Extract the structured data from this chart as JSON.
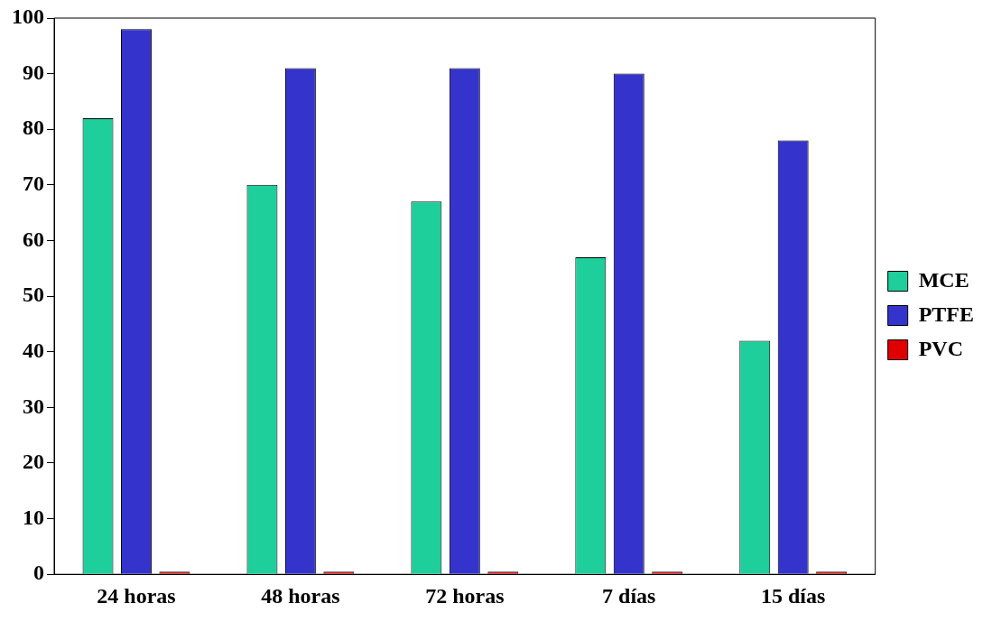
{
  "chart_data": {
    "type": "bar",
    "categories": [
      "24 horas",
      "48 horas",
      "72 horas",
      "7 días",
      "15 días"
    ],
    "series": [
      {
        "name": "MCE",
        "color": "#1ecf9c",
        "values": [
          82,
          70,
          67,
          57,
          42
        ]
      },
      {
        "name": "PTFE",
        "color": "#3434cc",
        "values": [
          98,
          91,
          91,
          90,
          78
        ]
      },
      {
        "name": "PVC",
        "color": "#e00000",
        "values": [
          0,
          0,
          0,
          0,
          0
        ]
      }
    ],
    "ylim": [
      0,
      100
    ],
    "yticks": [
      0,
      10,
      20,
      30,
      40,
      50,
      60,
      70,
      80,
      90,
      100
    ],
    "grid": false,
    "legend": "right"
  }
}
